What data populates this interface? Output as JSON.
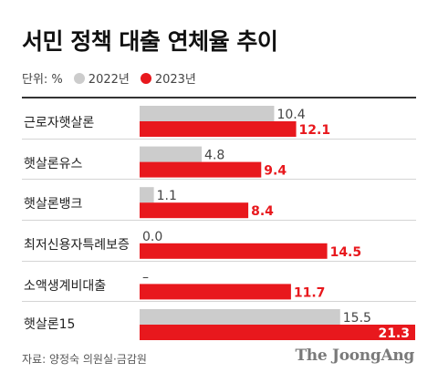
{
  "title": "서민 정책 대출 연체율 추이",
  "legend": {
    "unit": "단위: %",
    "items": [
      {
        "label": "2022년",
        "color": "#cccccc"
      },
      {
        "label": "2023년",
        "color": "#e8181d"
      }
    ]
  },
  "chart_data": {
    "type": "bar",
    "orientation": "horizontal",
    "categories": [
      "근로자햇살론",
      "햇살론유스",
      "햇살론뱅크",
      "최저신용자특례보증",
      "소액생계비대출",
      "햇살론15"
    ],
    "series": [
      {
        "name": "2022년",
        "color": "#cccccc",
        "values": [
          10.4,
          4.8,
          1.1,
          0.0,
          null,
          15.5
        ],
        "labels": [
          "10.4",
          "4.8",
          "1.1",
          "0.0",
          "–",
          "15.5"
        ]
      },
      {
        "name": "2023년",
        "color": "#e8181d",
        "values": [
          12.1,
          9.4,
          8.4,
          14.5,
          11.7,
          21.3
        ],
        "labels": [
          "12.1",
          "9.4",
          "8.4",
          "14.5",
          "11.7",
          "21.3"
        ]
      }
    ],
    "xlim": [
      0,
      21.3
    ]
  },
  "source": "자료: 양정숙 의원실·금감원",
  "brand": "The JoongAng"
}
